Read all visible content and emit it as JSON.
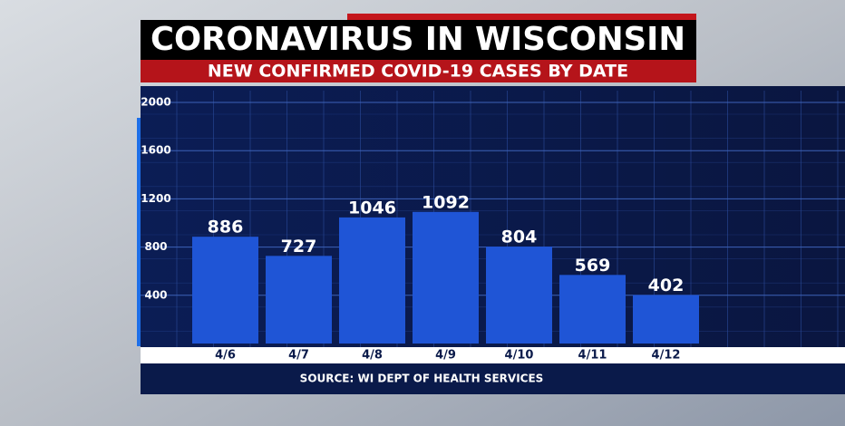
{
  "chart_data": {
    "type": "bar",
    "title": "CORONAVIRUS IN WISCONSIN",
    "subtitle": "NEW CONFIRMED COVID-19 CASES BY DATE",
    "source": "SOURCE: WI DEPT OF HEALTH SERVICES",
    "categories": [
      "4/6",
      "4/7",
      "4/8",
      "4/9",
      "4/10",
      "4/11",
      "4/12"
    ],
    "values": [
      886,
      727,
      1046,
      1092,
      804,
      569,
      402
    ],
    "color": "#1f55d6",
    "ylim": [
      0,
      2000
    ],
    "yticks": [
      400,
      800,
      1200,
      1600,
      2000
    ],
    "grid": true
  }
}
